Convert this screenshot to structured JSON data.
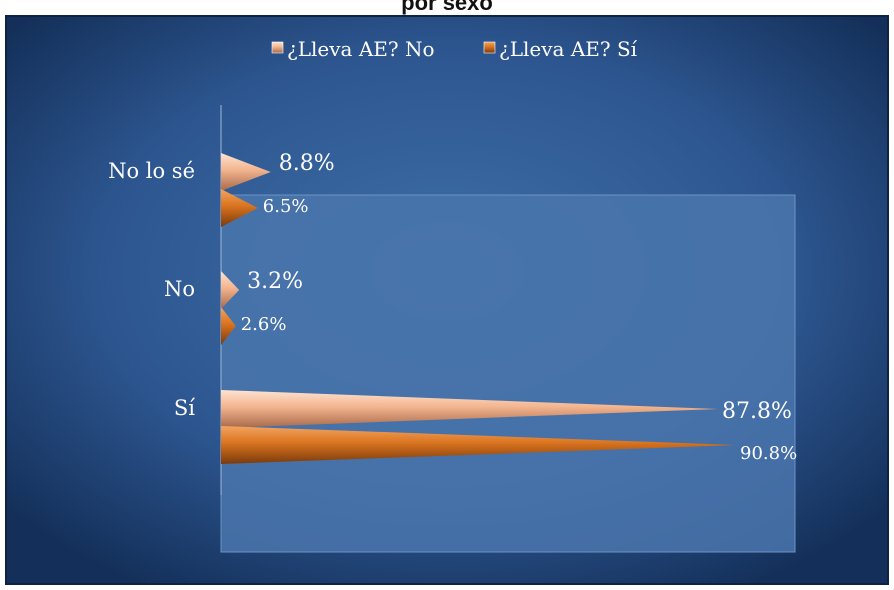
{
  "chart_data": {
    "type": "bar",
    "orientation": "horizontal",
    "title": "por sexo",
    "categories": [
      "No lo sé",
      "No",
      "Sí"
    ],
    "series": [
      {
        "name": "¿Lleva AE? No",
        "values": [
          8.8,
          3.2,
          87.8
        ],
        "labels": [
          "8.8%",
          "3.2%",
          "87.8%"
        ],
        "color": "#f2b48e"
      },
      {
        "name": "¿Lleva AE? Sí",
        "values": [
          6.5,
          2.6,
          90.8
        ],
        "labels": [
          "6.5%",
          "2.6%",
          "90.8%"
        ],
        "color": "#d9731f"
      }
    ],
    "xlim": [
      0,
      100
    ],
    "legend_position": "top",
    "grid": false
  },
  "colors": {
    "background_outer": "#1a3a66",
    "background_inner": "#3d6ba3",
    "plot_area": "#4a76ad",
    "text": "#ffffff"
  }
}
